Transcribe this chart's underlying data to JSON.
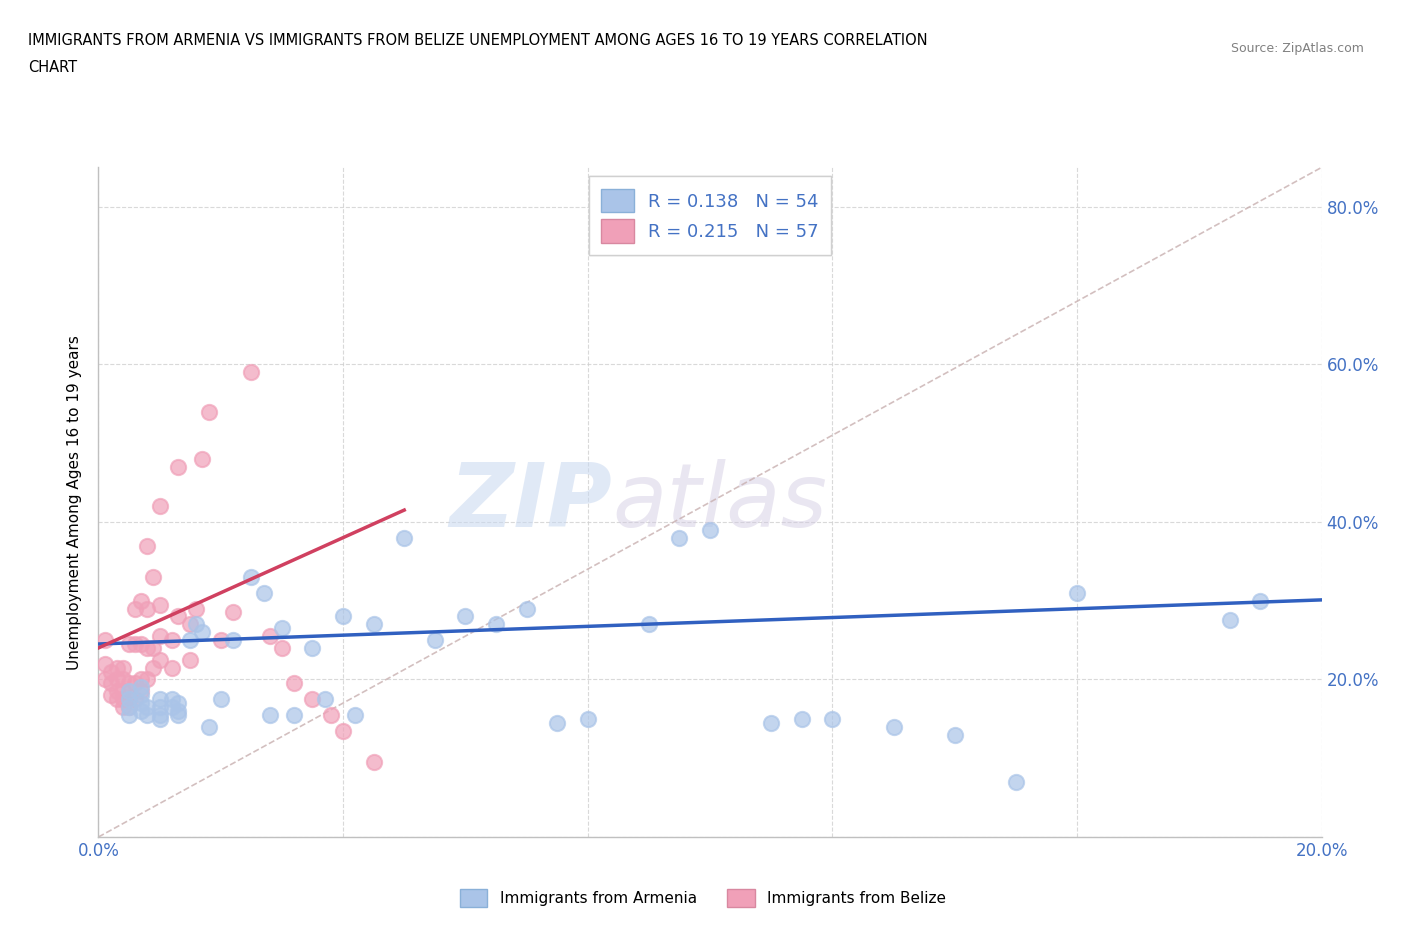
{
  "title_line1": "IMMIGRANTS FROM ARMENIA VS IMMIGRANTS FROM BELIZE UNEMPLOYMENT AMONG AGES 16 TO 19 YEARS CORRELATION",
  "title_line2": "CHART",
  "source": "Source: ZipAtlas.com",
  "ylabel_label": "Unemployment Among Ages 16 to 19 years",
  "xlim": [
    0.0,
    0.2
  ],
  "ylim": [
    0.0,
    0.85
  ],
  "xticks": [
    0.0,
    0.04,
    0.08,
    0.12,
    0.16,
    0.2
  ],
  "yticks": [
    0.0,
    0.2,
    0.4,
    0.6,
    0.8
  ],
  "xtick_labels": [
    "0.0%",
    "",
    "",
    "",
    "",
    "20.0%"
  ],
  "ytick_labels": [
    "",
    "20.0%",
    "40.0%",
    "60.0%",
    "80.0%"
  ],
  "armenia_color": "#aac4e8",
  "belize_color": "#f0a0b8",
  "armenia_R": 0.138,
  "armenia_N": 54,
  "belize_R": 0.215,
  "belize_N": 57,
  "armenia_line_color": "#3060c0",
  "belize_line_color": "#d04060",
  "diagonal_color": "#c8b0b0",
  "watermark_zip": "ZIP",
  "watermark_atlas": "atlas",
  "legend_armenia_label": "Immigrants from Armenia",
  "legend_belize_label": "Immigrants from Belize",
  "armenia_x": [
    0.005,
    0.005,
    0.005,
    0.005,
    0.007,
    0.007,
    0.007,
    0.007,
    0.008,
    0.008,
    0.01,
    0.01,
    0.01,
    0.01,
    0.012,
    0.012,
    0.013,
    0.013,
    0.013,
    0.015,
    0.016,
    0.017,
    0.018,
    0.02,
    0.022,
    0.025,
    0.027,
    0.028,
    0.03,
    0.032,
    0.035,
    0.037,
    0.04,
    0.042,
    0.045,
    0.05,
    0.055,
    0.06,
    0.065,
    0.07,
    0.075,
    0.08,
    0.09,
    0.095,
    0.1,
    0.11,
    0.115,
    0.12,
    0.13,
    0.14,
    0.15,
    0.16,
    0.185,
    0.19
  ],
  "armenia_y": [
    0.155,
    0.165,
    0.175,
    0.185,
    0.16,
    0.17,
    0.18,
    0.19,
    0.155,
    0.165,
    0.15,
    0.155,
    0.165,
    0.175,
    0.165,
    0.175,
    0.155,
    0.16,
    0.17,
    0.25,
    0.27,
    0.26,
    0.14,
    0.175,
    0.25,
    0.33,
    0.31,
    0.155,
    0.265,
    0.155,
    0.24,
    0.175,
    0.28,
    0.155,
    0.27,
    0.38,
    0.25,
    0.28,
    0.27,
    0.29,
    0.145,
    0.15,
    0.27,
    0.38,
    0.39,
    0.145,
    0.15,
    0.15,
    0.14,
    0.13,
    0.07,
    0.31,
    0.275,
    0.3
  ],
  "belize_x": [
    0.001,
    0.001,
    0.001,
    0.002,
    0.002,
    0.002,
    0.003,
    0.003,
    0.003,
    0.003,
    0.004,
    0.004,
    0.004,
    0.004,
    0.004,
    0.005,
    0.005,
    0.005,
    0.005,
    0.006,
    0.006,
    0.006,
    0.006,
    0.007,
    0.007,
    0.007,
    0.007,
    0.008,
    0.008,
    0.008,
    0.008,
    0.009,
    0.009,
    0.009,
    0.01,
    0.01,
    0.01,
    0.01,
    0.012,
    0.012,
    0.013,
    0.013,
    0.015,
    0.015,
    0.016,
    0.017,
    0.018,
    0.02,
    0.022,
    0.025,
    0.028,
    0.03,
    0.032,
    0.035,
    0.038,
    0.04,
    0.045
  ],
  "belize_y": [
    0.2,
    0.22,
    0.25,
    0.18,
    0.195,
    0.21,
    0.175,
    0.185,
    0.2,
    0.215,
    0.165,
    0.175,
    0.185,
    0.2,
    0.215,
    0.165,
    0.175,
    0.195,
    0.245,
    0.175,
    0.195,
    0.245,
    0.29,
    0.185,
    0.2,
    0.245,
    0.3,
    0.2,
    0.24,
    0.29,
    0.37,
    0.215,
    0.24,
    0.33,
    0.225,
    0.255,
    0.295,
    0.42,
    0.215,
    0.25,
    0.28,
    0.47,
    0.225,
    0.27,
    0.29,
    0.48,
    0.54,
    0.25,
    0.285,
    0.59,
    0.255,
    0.24,
    0.195,
    0.175,
    0.155,
    0.135,
    0.095
  ]
}
